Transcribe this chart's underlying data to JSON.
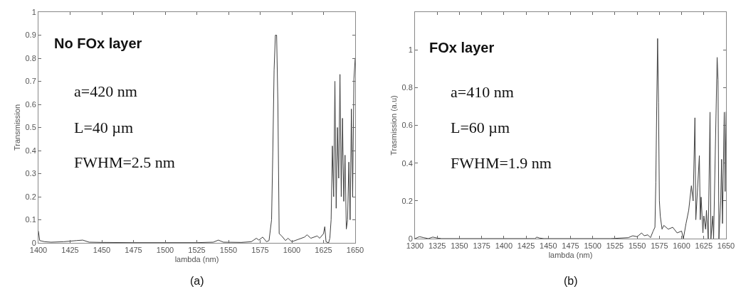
{
  "chart_data": [
    {
      "type": "line",
      "xlabel": "lambda (nm)",
      "ylabel": "Transmission",
      "xlim": [
        1400,
        1650
      ],
      "xticks": [
        1400,
        1425,
        1450,
        1475,
        1500,
        1525,
        1550,
        1575,
        1600,
        1625,
        1650
      ],
      "ylim": [
        0,
        1
      ],
      "yticks": [
        0,
        0.1,
        0.2,
        0.3,
        0.4,
        0.5,
        0.6,
        0.7,
        0.8,
        0.9,
        1
      ],
      "grid": false,
      "marker": "none",
      "line_style": "solid",
      "annotations": [
        "No FOx layer",
        "a=420 nm",
        "L=40 µm",
        "FWHM=2.5 nm",
        "(a)"
      ],
      "series": [
        {
          "color": "#404040",
          "x": [
            1400,
            1401,
            1405,
            1410,
            1420,
            1430,
            1435,
            1440,
            1450,
            1475,
            1500,
            1525,
            1538,
            1542,
            1546,
            1560,
            1568,
            1572,
            1574,
            1577,
            1580,
            1582,
            1584,
            1585,
            1586,
            1587,
            1588,
            1589,
            1590,
            1592,
            1595,
            1597,
            1600,
            1605,
            1610,
            1612,
            1615,
            1620,
            1622,
            1625,
            1626,
            1627,
            1629,
            1630,
            1631,
            1632,
            1633,
            1634,
            1635,
            1636,
            1637,
            1638,
            1639,
            1640,
            1641,
            1642,
            1643,
            1644,
            1645,
            1646,
            1647,
            1648,
            1649,
            1650
          ],
          "values": [
            0.05,
            0.01,
            0.005,
            0.003,
            0.005,
            0.01,
            0.012,
            0.003,
            0.002,
            0.001,
            0.001,
            0.001,
            0.003,
            0.012,
            0.003,
            0.002,
            0.005,
            0.02,
            0.012,
            0.025,
            0.005,
            0.01,
            0.1,
            0.4,
            0.75,
            0.9,
            0.9,
            0.6,
            0.04,
            0.03,
            0.01,
            0.02,
            0.005,
            0.015,
            0.025,
            0.035,
            0.02,
            0.03,
            0.02,
            0.04,
            0.07,
            0.005,
            0,
            0.02,
            0.1,
            0.42,
            0.2,
            0.7,
            0.15,
            0.5,
            0.28,
            0.73,
            0.2,
            0.54,
            0.18,
            0.38,
            0.06,
            0.1,
            0.35,
            0.1,
            0.58,
            0.2,
            0.71,
            0.8
          ]
        }
      ]
    },
    {
      "type": "line",
      "xlabel": "lambda (nm)",
      "ylabel": "Trasmission (a.u)",
      "xlim": [
        1300,
        1650
      ],
      "xticks": [
        1300,
        1325,
        1350,
        1375,
        1400,
        1425,
        1450,
        1475,
        1500,
        1525,
        1550,
        1575,
        1600,
        1625,
        1650
      ],
      "ylim": [
        0,
        1.2
      ],
      "yticks": [
        0,
        0.2,
        0.4,
        0.6,
        0.8,
        1
      ],
      "grid": false,
      "marker": "none",
      "line_style": "solid",
      "annotations": [
        "FOx layer",
        "a=410 nm",
        "L=60 µm",
        "FWHM=1.9 nm",
        "(b)"
      ],
      "series": [
        {
          "color": "#404040",
          "x": [
            1300,
            1305,
            1310,
            1315,
            1320,
            1325,
            1330,
            1400,
            1435,
            1437,
            1440,
            1445,
            1500,
            1520,
            1540,
            1545,
            1550,
            1555,
            1558,
            1562,
            1565,
            1568,
            1570,
            1571,
            1572,
            1573,
            1574,
            1575,
            1576,
            1578,
            1580,
            1585,
            1590,
            1595,
            1600,
            1602,
            1605,
            1608,
            1611,
            1613,
            1615,
            1616,
            1618,
            1620,
            1621,
            1622,
            1624,
            1625,
            1627,
            1628,
            1630,
            1632,
            1633,
            1635,
            1636,
            1640,
            1641,
            1642,
            1644,
            1645,
            1646,
            1648,
            1649,
            1650
          ],
          "values": [
            0,
            0.01,
            0.005,
            0,
            0.008,
            0.003,
            0,
            0,
            0,
            0.008,
            0.003,
            0,
            0,
            0,
            0.005,
            0.015,
            0.01,
            0.03,
            0.015,
            0.02,
            0.005,
            0.04,
            0.06,
            0.3,
            0.7,
            1.06,
            0.72,
            0.2,
            0.12,
            0.05,
            0.07,
            0.05,
            0.06,
            0.03,
            0.04,
            0,
            0.08,
            0.15,
            0.28,
            0.2,
            0.64,
            0.1,
            0.27,
            0.44,
            0.1,
            0.22,
            0.03,
            0.12,
            0.05,
            0.15,
            0,
            0.67,
            0,
            0.12,
            0,
            0.96,
            0.84,
            0,
            0.2,
            0.42,
            0.08,
            0.67,
            0.25,
            0.67
          ]
        }
      ]
    }
  ]
}
